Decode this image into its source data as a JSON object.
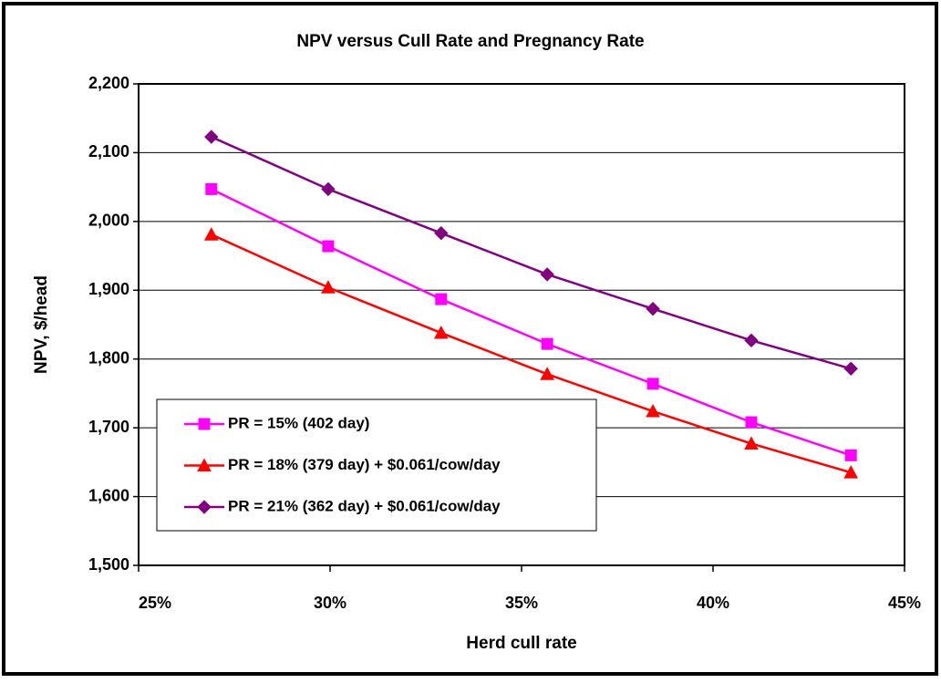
{
  "chart_data": {
    "type": "line",
    "title": "NPV versus Cull Rate and Pregnancy Rate",
    "xlabel": "Herd cull rate",
    "ylabel": "NPV, $/head",
    "x": [
      26.9,
      29.95,
      32.9,
      35.67,
      38.43,
      41.0,
      43.6
    ],
    "series": [
      {
        "name": "PR = 15% (402 day)",
        "color": "#ff00ff",
        "marker": "square",
        "values": [
          2047,
          1964,
          1887,
          1822,
          1764,
          1708,
          1660
        ]
      },
      {
        "name": "PR = 18% (379 day) + $0.061/cow/day",
        "color": "#ff0000",
        "marker": "triangle",
        "values": [
          1981,
          1904,
          1838,
          1778,
          1724,
          1677,
          1635
        ]
      },
      {
        "name": "PR = 21% (362 day) + $0.061/cow/day",
        "color": "#800080",
        "marker": "diamond",
        "values": [
          2123,
          2047,
          1983,
          1923,
          1873,
          1827,
          1786
        ]
      }
    ],
    "xlim": [
      25,
      45
    ],
    "xticks": [
      {
        "value": 25,
        "label": "25%"
      },
      {
        "value": 30,
        "label": "30%"
      },
      {
        "value": 35,
        "label": "35%"
      },
      {
        "value": 40,
        "label": "40%"
      },
      {
        "value": 45,
        "label": "45%"
      }
    ],
    "ylim": [
      1500,
      2200
    ],
    "yticks": [
      {
        "value": 1500,
        "label": "1,500"
      },
      {
        "value": 1600,
        "label": "1,600"
      },
      {
        "value": 1700,
        "label": "1,700"
      },
      {
        "value": 1800,
        "label": "1,800"
      },
      {
        "value": 1900,
        "label": "1,900"
      },
      {
        "value": 2000,
        "label": "2,000"
      },
      {
        "value": 2100,
        "label": "2,100"
      },
      {
        "value": 2200,
        "label": "2,200"
      }
    ],
    "grid": true,
    "legend": "lower-left"
  }
}
